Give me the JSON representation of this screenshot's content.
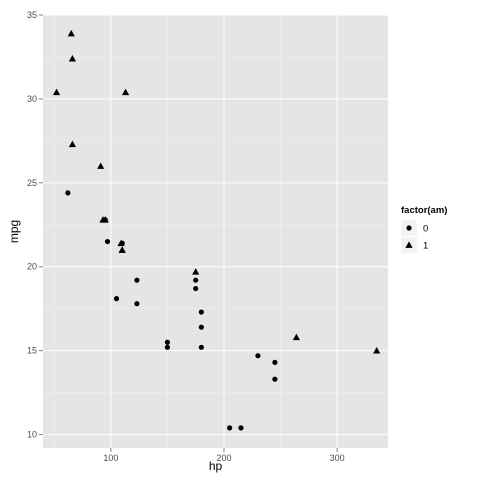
{
  "chart_data": {
    "type": "scatter",
    "xlabel": "hp",
    "ylabel": "mpg",
    "xlim": [
      40,
      345
    ],
    "ylim": [
      9.2,
      35
    ],
    "x_ticks": [
      100,
      200,
      300
    ],
    "y_ticks": [
      10,
      15,
      20,
      25,
      30,
      35
    ],
    "x_tick_labels": [
      "100",
      "200",
      "300"
    ],
    "y_tick_labels": [
      "10",
      "15",
      "20",
      "25",
      "30",
      "35"
    ],
    "grid": true,
    "legend": {
      "title": "factor(am)",
      "placement": "right",
      "entries": [
        {
          "label": "0",
          "shape": "circle"
        },
        {
          "label": "1",
          "shape": "triangle"
        }
      ]
    },
    "series": [
      {
        "name": "0",
        "shape": "circle",
        "points": [
          {
            "x": 62,
            "y": 24.4
          },
          {
            "x": 95,
            "y": 22.8
          },
          {
            "x": 97,
            "y": 21.5
          },
          {
            "x": 105,
            "y": 18.1
          },
          {
            "x": 110,
            "y": 21.4
          },
          {
            "x": 123,
            "y": 19.2
          },
          {
            "x": 123,
            "y": 17.8
          },
          {
            "x": 150,
            "y": 15.5
          },
          {
            "x": 150,
            "y": 15.2
          },
          {
            "x": 175,
            "y": 18.7
          },
          {
            "x": 175,
            "y": 19.2
          },
          {
            "x": 180,
            "y": 17.3
          },
          {
            "x": 180,
            "y": 16.4
          },
          {
            "x": 180,
            "y": 15.2
          },
          {
            "x": 205,
            "y": 10.4
          },
          {
            "x": 215,
            "y": 10.4
          },
          {
            "x": 230,
            "y": 14.7
          },
          {
            "x": 245,
            "y": 14.3
          },
          {
            "x": 245,
            "y": 13.3
          }
        ]
      },
      {
        "name": "1",
        "shape": "triangle",
        "points": [
          {
            "x": 52,
            "y": 30.4
          },
          {
            "x": 65,
            "y": 33.9
          },
          {
            "x": 66,
            "y": 32.4
          },
          {
            "x": 66,
            "y": 27.3
          },
          {
            "x": 91,
            "y": 26.0
          },
          {
            "x": 93,
            "y": 22.8
          },
          {
            "x": 95,
            "y": 22.8
          },
          {
            "x": 109,
            "y": 21.4
          },
          {
            "x": 110,
            "y": 21.0
          },
          {
            "x": 110,
            "y": 21.0
          },
          {
            "x": 113,
            "y": 30.4
          },
          {
            "x": 175,
            "y": 19.7
          },
          {
            "x": 264,
            "y": 15.8
          },
          {
            "x": 335,
            "y": 15.0
          }
        ]
      }
    ]
  }
}
